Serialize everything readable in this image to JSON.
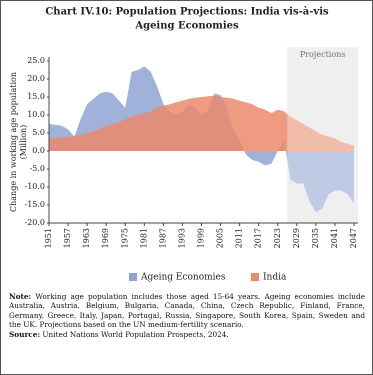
{
  "chart_data": {
    "type": "area",
    "title_lines": [
      "Chart IV.10: Population Projections: India vis-à-vis",
      "Ageing Economies"
    ],
    "y_label_lines": [
      "Change in working age population",
      "(Million)"
    ],
    "x": [
      1951,
      1953,
      1955,
      1957,
      1959,
      1961,
      1963,
      1965,
      1967,
      1969,
      1971,
      1973,
      1975,
      1977,
      1979,
      1981,
      1983,
      1985,
      1987,
      1989,
      1991,
      1993,
      1995,
      1997,
      1999,
      2001,
      2003,
      2005,
      2007,
      2009,
      2011,
      2013,
      2015,
      2017,
      2019,
      2021,
      2023,
      2025,
      2027,
      2029,
      2031,
      2033,
      2035,
      2037,
      2039,
      2041,
      2043,
      2045,
      2047
    ],
    "series": [
      {
        "name": "Ageing Economies",
        "color": "#8fa3d4",
        "values": [
          7.5,
          7.3,
          7,
          6,
          4,
          9,
          13,
          14.5,
          16,
          16.5,
          16,
          14,
          12,
          22,
          22.5,
          23.5,
          22,
          18,
          13,
          11,
          10,
          11,
          13,
          12,
          10,
          11,
          16,
          15.5,
          12,
          6,
          3,
          -1,
          -2.5,
          -3,
          -4,
          -3.5,
          0,
          3,
          -8,
          -9,
          -9,
          -14,
          -17,
          -16,
          -12,
          -11,
          -11,
          -12,
          -14.5
        ]
      },
      {
        "name": "India",
        "color": "#ec8a6c",
        "values": [
          3.5,
          3.6,
          3.8,
          4,
          4.2,
          4.5,
          5,
          5.5,
          6.3,
          7,
          7.5,
          8,
          8.8,
          9.5,
          10,
          10.5,
          11,
          12,
          12.5,
          13,
          13.5,
          14,
          14.5,
          14.8,
          15,
          15.2,
          15.3,
          15,
          14.8,
          14.5,
          14,
          13.5,
          13,
          12,
          11.5,
          10.5,
          11.5,
          11,
          9.5,
          8.5,
          7.5,
          6.5,
          5.5,
          4.5,
          4,
          3.5,
          2.5,
          2,
          1.5
        ]
      }
    ],
    "xlim": [
      1951,
      2047
    ],
    "xticks": [
      1951,
      1957,
      1963,
      1969,
      1975,
      1981,
      1987,
      1993,
      1999,
      2005,
      2011,
      2017,
      2023,
      2029,
      2035,
      2041,
      2047
    ],
    "ylim": [
      -20,
      25
    ],
    "yticks": [
      {
        "value": -20,
        "label": "-20.0"
      },
      {
        "value": -15,
        "label": "-15.0"
      },
      {
        "value": -10,
        "label": "-10.0"
      },
      {
        "value": -5,
        "label": "-5.0"
      },
      {
        "value": 0,
        "label": "0.0"
      },
      {
        "value": 5,
        "label": "5.0"
      },
      {
        "value": 10,
        "label": "10.0"
      },
      {
        "value": 15,
        "label": "15.0"
      },
      {
        "value": 20,
        "label": "20.0"
      },
      {
        "value": 25,
        "label": "25.0"
      }
    ],
    "projection": {
      "label": "Projections",
      "start": 2026
    },
    "legend": "bottom",
    "note_label": "Note:",
    "note": "Working age population includes those aged 15-64 years. Ageing economies include Australia, Austria, Belgium, Bulgaria, Canada, China, Czech Republic, Finland, France, Germany, Greece, Italy, Japan, Portugal, Russia, Singapore, South Korea, Spain, Sweden and the UK. Projections based on the UN medium-fertility scenario.",
    "source_label": "Source:",
    "source": "United Nations World Population Prospects, 2024."
  }
}
